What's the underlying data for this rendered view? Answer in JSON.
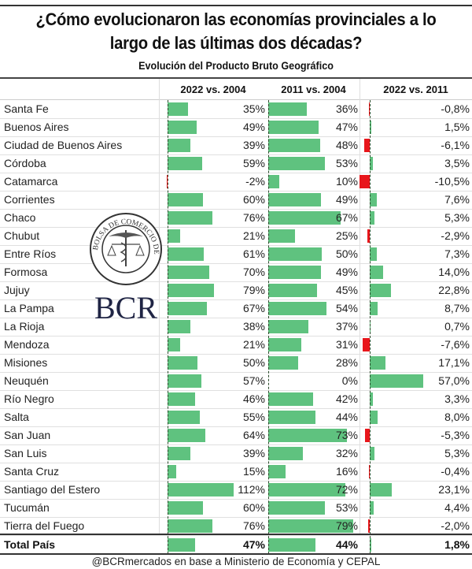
{
  "chart_data": {
    "type": "table",
    "title": "¿Cómo evolucionaron las economías provinciales a lo largo de las últimas dos décadas?",
    "subtitle": "Evolución del Producto Bruto Geográfico",
    "columns": [
      "2022 vs. 2004",
      "2011 vs. 2004",
      "2022 vs. 2011"
    ],
    "rows": [
      {
        "name": "Santa Fe",
        "values": [
          35,
          36,
          -0.8
        ],
        "labels": [
          "35%",
          "36%",
          "-0,8%"
        ]
      },
      {
        "name": "Buenos Aires",
        "values": [
          49,
          47,
          1.5
        ],
        "labels": [
          "49%",
          "47%",
          "1,5%"
        ]
      },
      {
        "name": "Ciudad de Buenos Aires",
        "values": [
          39,
          48,
          -6.1
        ],
        "labels": [
          "39%",
          "48%",
          "-6,1%"
        ]
      },
      {
        "name": "Córdoba",
        "values": [
          59,
          53,
          3.5
        ],
        "labels": [
          "59%",
          "53%",
          "3,5%"
        ]
      },
      {
        "name": "Catamarca",
        "values": [
          -2,
          10,
          -10.5
        ],
        "labels": [
          "-2%",
          "10%",
          "-10,5%"
        ]
      },
      {
        "name": "Corrientes",
        "values": [
          60,
          49,
          7.6
        ],
        "labels": [
          "60%",
          "49%",
          "7,6%"
        ]
      },
      {
        "name": "Chaco",
        "values": [
          76,
          67,
          5.3
        ],
        "labels": [
          "76%",
          "67%",
          "5,3%"
        ]
      },
      {
        "name": "Chubut",
        "values": [
          21,
          25,
          -2.9
        ],
        "labels": [
          "21%",
          "25%",
          "-2,9%"
        ]
      },
      {
        "name": "Entre Ríos",
        "values": [
          61,
          50,
          7.3
        ],
        "labels": [
          "61%",
          "50%",
          "7,3%"
        ]
      },
      {
        "name": "Formosa",
        "values": [
          70,
          49,
          14.0
        ],
        "labels": [
          "70%",
          "49%",
          "14,0%"
        ]
      },
      {
        "name": "Jujuy",
        "values": [
          79,
          45,
          22.8
        ],
        "labels": [
          "79%",
          "45%",
          "22,8%"
        ]
      },
      {
        "name": "La Pampa",
        "values": [
          67,
          54,
          8.7
        ],
        "labels": [
          "67%",
          "54%",
          "8,7%"
        ]
      },
      {
        "name": "La Rioja",
        "values": [
          38,
          37,
          0.7
        ],
        "labels": [
          "38%",
          "37%",
          "0,7%"
        ]
      },
      {
        "name": "Mendoza",
        "values": [
          21,
          31,
          -7.6
        ],
        "labels": [
          "21%",
          "31%",
          "-7,6%"
        ]
      },
      {
        "name": "Misiones",
        "values": [
          50,
          28,
          17.1
        ],
        "labels": [
          "50%",
          "28%",
          "17,1%"
        ]
      },
      {
        "name": "Neuquén",
        "values": [
          57,
          0,
          57.0
        ],
        "labels": [
          "57%",
          "0%",
          "57,0%"
        ]
      },
      {
        "name": "Río Negro",
        "values": [
          46,
          42,
          3.3
        ],
        "labels": [
          "46%",
          "42%",
          "3,3%"
        ]
      },
      {
        "name": "Salta",
        "values": [
          55,
          44,
          8.0
        ],
        "labels": [
          "55%",
          "44%",
          "8,0%"
        ]
      },
      {
        "name": "San Juan",
        "values": [
          64,
          73,
          -5.3
        ],
        "labels": [
          "64%",
          "73%",
          "-5,3%"
        ]
      },
      {
        "name": "San Luis",
        "values": [
          39,
          32,
          5.3
        ],
        "labels": [
          "39%",
          "32%",
          "5,3%"
        ]
      },
      {
        "name": "Santa Cruz",
        "values": [
          15,
          16,
          -0.4
        ],
        "labels": [
          "15%",
          "16%",
          "-0,4%"
        ]
      },
      {
        "name": "Santiago del Estero",
        "values": [
          112,
          72,
          23.1
        ],
        "labels": [
          "112%",
          "72%",
          "23,1%"
        ]
      },
      {
        "name": "Tucumán",
        "values": [
          60,
          53,
          4.4
        ],
        "labels": [
          "60%",
          "53%",
          "4,4%"
        ]
      },
      {
        "name": "Tierra del Fuego",
        "values": [
          76,
          79,
          -2.0
        ],
        "labels": [
          "76%",
          "79%",
          "-2,0%"
        ]
      }
    ],
    "total": {
      "name": "Total País",
      "values": [
        47,
        44,
        1.8
      ],
      "labels": [
        "47%",
        "44%",
        "1,8%"
      ]
    },
    "colors": {
      "positive": "#5fc27f",
      "negative": "#e8161b"
    }
  },
  "logo": {
    "seal_text": "BOLSA DE COMERCIO DE ROSARIO",
    "wordmark": "BCR"
  },
  "source": "@BCRmercados en base a Ministerio de Economía y CEPAL"
}
